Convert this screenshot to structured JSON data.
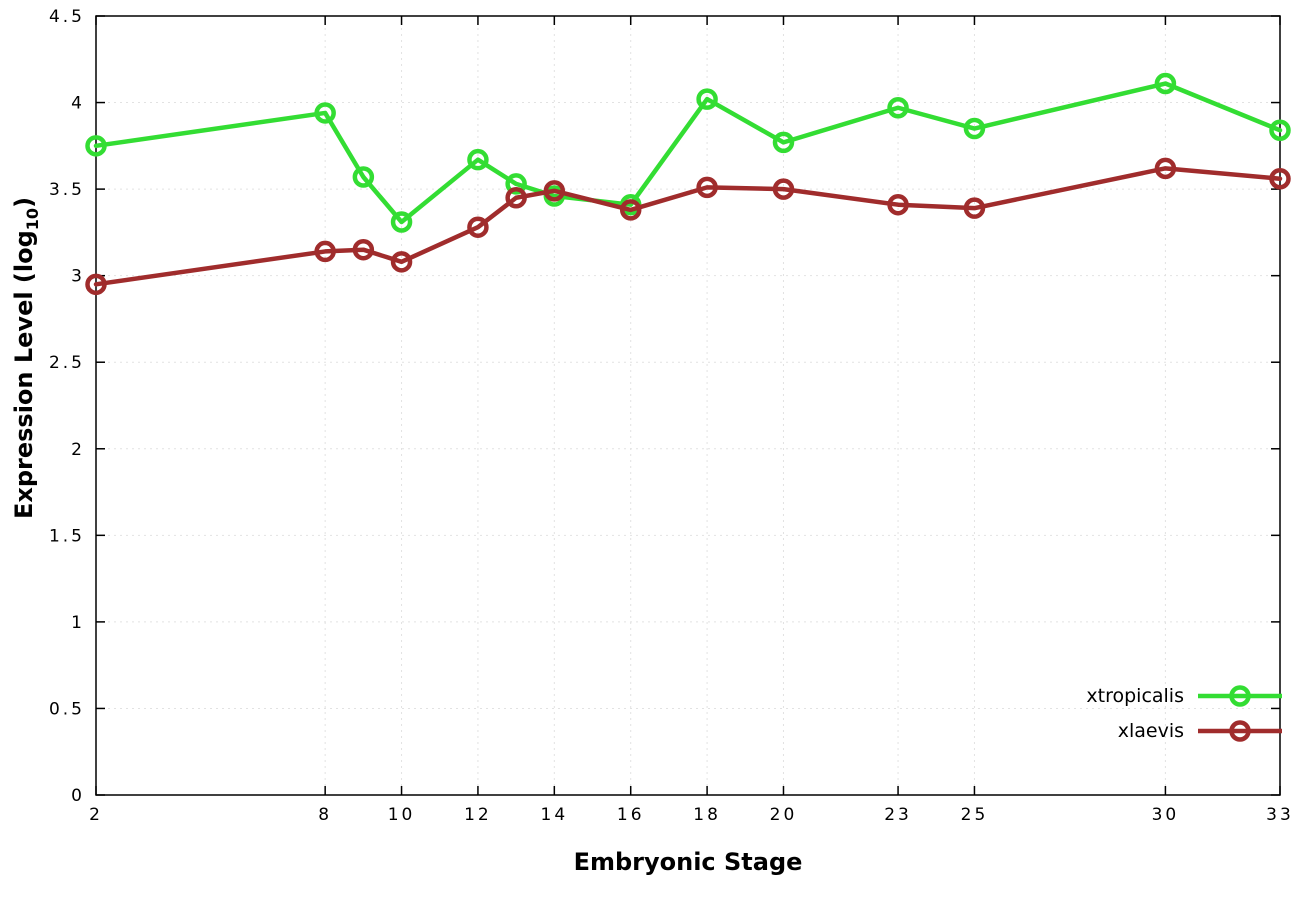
{
  "chart_data": {
    "type": "line",
    "title": "",
    "xlabel": "Embryonic Stage",
    "ylabel": "Expression Level (log10)",
    "ylabel_parts": {
      "prefix": "Expression Level (log",
      "sub": "10",
      "suffix": ")"
    },
    "xlim": [
      2,
      33
    ],
    "ylim": [
      0,
      4.5
    ],
    "xtick_values": [
      2,
      8,
      10,
      12,
      14,
      16,
      18,
      20,
      23,
      25,
      30,
      33
    ],
    "xtick_labels": [
      "2",
      "8",
      "10",
      "12",
      "14",
      "16",
      "18",
      "20",
      "23",
      "25",
      "30",
      "33"
    ],
    "ytick_values": [
      0,
      0.5,
      1,
      1.5,
      2,
      2.5,
      3,
      3.5,
      4,
      4.5
    ],
    "ytick_labels": [
      "0",
      "0.5",
      "1",
      "1.5",
      "2",
      "2.5",
      "3",
      "3.5",
      "4",
      "4.5"
    ],
    "grid": true,
    "legend_position": "bottom-right",
    "x": [
      2,
      8,
      9,
      10,
      12,
      13,
      14,
      16,
      18,
      20,
      23,
      25,
      30,
      33
    ],
    "series": [
      {
        "name": "xtropicalis",
        "color": "#33dd33",
        "values": [
          3.75,
          3.94,
          3.57,
          3.31,
          3.67,
          3.53,
          3.46,
          3.41,
          4.02,
          3.77,
          3.97,
          3.85,
          4.11,
          3.84
        ]
      },
      {
        "name": "xlaevis",
        "color": "#a02c2c",
        "values": [
          2.95,
          3.14,
          3.15,
          3.08,
          3.28,
          3.45,
          3.49,
          3.38,
          3.51,
          3.5,
          3.41,
          3.39,
          3.62,
          3.56
        ]
      }
    ]
  }
}
